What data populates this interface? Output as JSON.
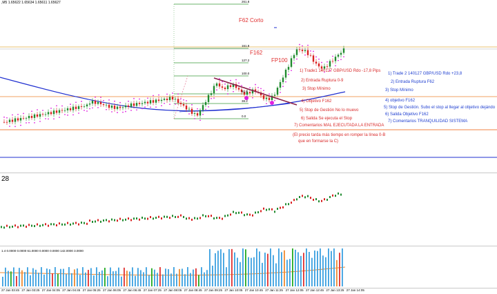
{
  "chart_header": {
    "ohlc": ",M5  1.65622 1.65634 1.65611 1.65627"
  },
  "fib_levels": [
    {
      "label": "261.8"
    },
    {
      "label": "161.8"
    },
    {
      "label": "127.2"
    },
    {
      "label": "100.0"
    },
    {
      "label": "61.8"
    },
    {
      "label": "38.2"
    },
    {
      "label": "0.0"
    }
  ],
  "labels": {
    "f62_corto": "F62 Corto",
    "f162": "F162",
    "fp100": "FP100",
    "osc_value": "28",
    "volume_header": "1.4  0.0000  0.0000  61.0000  0.0000  0.0000 142.0000  3.0000"
  },
  "trade1_notes": [
    "1) Trade1 140127 GBP/USD Rdo -17,8 Pips",
    "2) Entrada Ruptura 0-9",
    "3) Stop Mínimo",
    "4) Objetivo F162",
    "5) Stop de Gestión No lo muevo",
    "6) Salida Se ejecuta el Stop",
    "7) Comentarios MAL EJECUTADA LA ENTRADA",
    "(El precio tarda más tiempo en romper la línea 0-B",
    "que en formarse la C)"
  ],
  "trade2_notes": [
    "1) Trade 2 140127 GBP/USD Rdo +23,8",
    "2) Entrada Ruptura F62",
    "3) Stop Mínimo",
    "4) objetivo F162",
    "5) Stop de Gestión. Subo el stop al llegar al objetivo dejándo",
    "6) Salida Objetivo F162",
    "7) Comentarios TRANQUILIDAD SISTEMA"
  ],
  "x_axis_labels": [
    "27 Jan 03:45",
    "27 Jan 03:25",
    "27 Jan 04:05",
    "27 Jan 04:45",
    "27 Jan 05:25",
    "27 Jan 06:05",
    "27 Jan 06:45",
    "27 Jan 07:25",
    "27 Jan 08:05",
    "27 Jan 08:45",
    "27 Jan 09:25",
    "27 Jan 10:05",
    "27 Jan 10:45",
    "27 Jan 11:25",
    "27 Jan 12:05",
    "27 Jan 12:45",
    "27 Jan 13:25",
    "27 Jan 14:05"
  ],
  "colors": {
    "bull": "#1f8a2e",
    "bear": "#d92020",
    "psar": "#e020e0",
    "ma_blue": "#1f2fd0",
    "ma_orange": "#f08a30",
    "fib": "#3a9a3a",
    "trend": "#8a1f4a",
    "vol_blue": "#3aa0e0",
    "vol_red": "#e03030",
    "vol_green": "#22aa22"
  }
}
